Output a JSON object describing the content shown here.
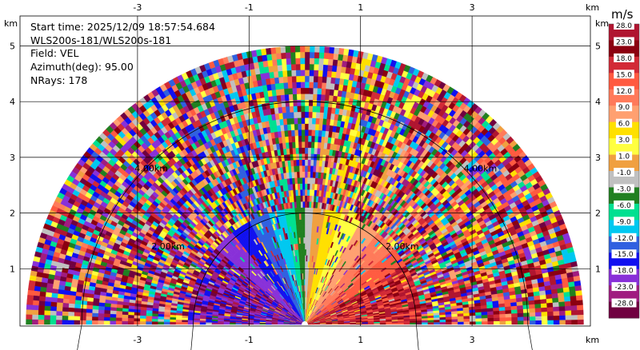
{
  "info": {
    "start_time": "Start time: 2025/12/09 18:57:54.684",
    "site": "WLS200s-181/WLS200s-181",
    "field": "Field: VEL",
    "azimuth": "Azimuth(deg): 95.00",
    "nrays": "NRays: 178"
  },
  "colorbar": {
    "unit": "m/s",
    "labels": [
      "28.0",
      "23.0",
      "18.0",
      "15.0",
      "12.0",
      "9.0",
      "6.0",
      "3.0",
      "1.0",
      "-1.0",
      "-3.0",
      "-6.0",
      "-9.0",
      "-12.0",
      "-15.0",
      "-18.0",
      "-23.0",
      "-28.0"
    ],
    "colors": [
      "#b01530",
      "#8b0010",
      "#d22a36",
      "#ff5a40",
      "#ff7a5a",
      "#ffa070",
      "#ffe000",
      "#ffff40",
      "#f0a040",
      "#c0c0c0",
      "#208020",
      "#00e090",
      "#00c8f0",
      "#3060e0",
      "#1010f0",
      "#8830d8",
      "#a01c80",
      "#700040"
    ]
  },
  "chart_data": {
    "type": "heatmap",
    "subtype": "radar RHI/sector velocity display",
    "field": "VEL",
    "units": "m/s",
    "x_tick_labels": [
      "-3",
      "-1",
      "1",
      "3"
    ],
    "y_tick_labels": [
      "1",
      "2",
      "3",
      "4",
      "5"
    ],
    "x_unit_label": "km",
    "y_unit_label": "km",
    "xlim": [
      -5.0,
      5.2
    ],
    "ylim": [
      0,
      5.9
    ],
    "range_ring_labels": [
      "2.00km",
      "4.00km"
    ],
    "max_range_km": 5.0,
    "color_levels": [
      -28.0,
      -23.0,
      -18.0,
      -15.0,
      -12.0,
      -9.0,
      -6.0,
      -3.0,
      -1.0,
      1.0,
      3.0,
      6.0,
      9.0,
      12.0,
      15.0,
      18.0,
      23.0,
      28.0
    ],
    "rays": 178,
    "grid": true
  }
}
